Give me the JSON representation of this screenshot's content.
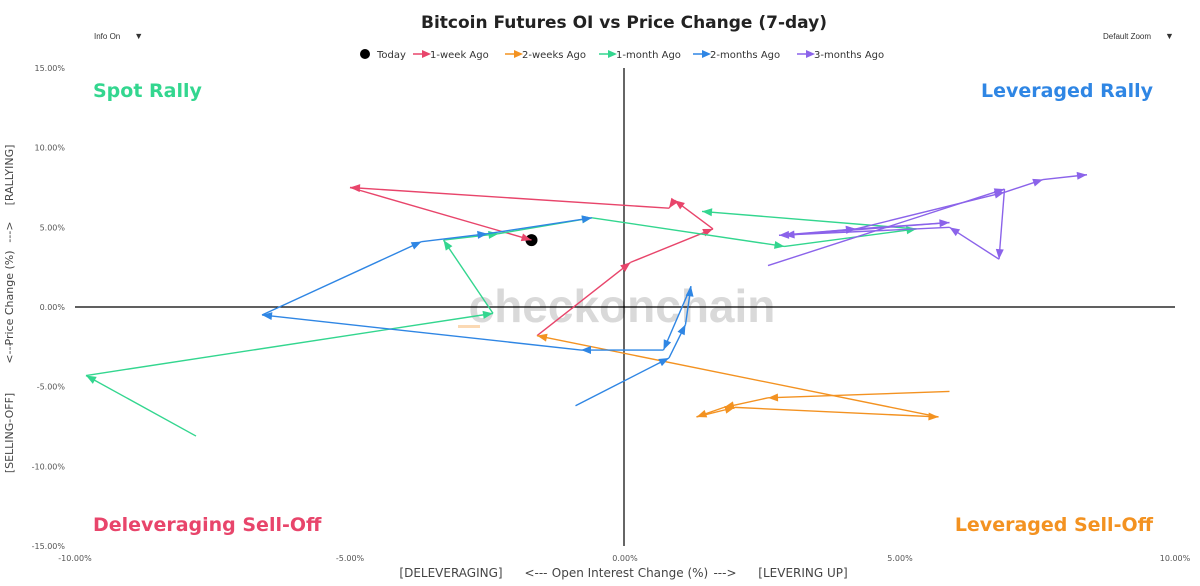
{
  "controls": {
    "info_label": "Info On",
    "zoom_label": "Default Zoom",
    "caret": "▼"
  },
  "colors": {
    "today": "#000000",
    "week1": "#e8456b",
    "week2": "#f39221",
    "month1": "#33d68f",
    "month2": "#2f86e4",
    "month3": "#8b63ea",
    "axis": "#000000",
    "watermark": "#d9d9d9"
  },
  "chart_data": {
    "type": "scatter",
    "title": "Bitcoin Futures OI vs Price Change (7-day)",
    "watermark": "checkonchain",
    "xlabel": "Open Interest Change (%)",
    "xlabel_left": "[DELEVERAGING]",
    "xlabel_right": "[LEVERING UP]",
    "ylabel": "Price Change (%)",
    "ylabel_bottom": "[SELLING-OFF]",
    "ylabel_top": "[RALLYING]",
    "arrow_left": "<---",
    "arrow_right": "--->",
    "xlim": [
      -10,
      10
    ],
    "ylim": [
      -15,
      15
    ],
    "xticks": [
      -10,
      -5,
      0,
      5,
      10
    ],
    "xtick_labels": [
      "-10.00%",
      "-5.00%",
      "0.00%",
      "5.00%",
      "10.00%"
    ],
    "yticks": [
      15,
      10,
      5,
      0,
      -5,
      -10,
      -15
    ],
    "ytick_labels": [
      "15.00%",
      "10.00%",
      "5.00%",
      "0.00%",
      "-5.00%",
      "-10.00%",
      "-15.00%"
    ],
    "grid": false,
    "legend_position": "top",
    "quadrants": {
      "top_left": "Spot Rally",
      "top_right": "Leveraged Rally",
      "bottom_left": "Deleveraging Sell-Off",
      "bottom_right": "Leveraged Sell-Off"
    },
    "series": [
      {
        "name": "Today",
        "key": "today",
        "marker": "dot",
        "points": [
          [
            -1.7,
            4.2
          ]
        ]
      },
      {
        "name": "1-week Ago",
        "key": "week1",
        "points": [
          [
            -1.6,
            -1.8
          ],
          [
            0.1,
            2.8
          ],
          [
            1.6,
            4.9
          ],
          [
            0.9,
            6.7
          ],
          [
            0.8,
            6.2
          ],
          [
            -5.0,
            7.5
          ],
          [
            -1.7,
            4.2
          ]
        ]
      },
      {
        "name": "2-weeks Ago",
        "key": "week2",
        "points": [
          [
            5.9,
            -5.3
          ],
          [
            2.6,
            -5.7
          ],
          [
            1.8,
            -6.3
          ],
          [
            1.3,
            -6.9
          ],
          [
            2.0,
            -6.3
          ],
          [
            5.7,
            -6.9
          ],
          [
            -1.6,
            -1.8
          ]
        ]
      },
      {
        "name": "1-month Ago",
        "key": "month1",
        "points": [
          [
            -7.8,
            -8.1
          ],
          [
            -9.8,
            -4.3
          ],
          [
            -2.4,
            -0.4
          ],
          [
            -3.3,
            4.2
          ],
          [
            -2.3,
            4.6
          ],
          [
            -0.6,
            5.6
          ],
          [
            2.9,
            3.8
          ],
          [
            5.3,
            4.9
          ],
          [
            1.4,
            6.0
          ]
        ]
      },
      {
        "name": "2-months Ago",
        "key": "month2",
        "points": [
          [
            -0.9,
            -6.2
          ],
          [
            0.8,
            -3.2
          ],
          [
            1.1,
            -1.1
          ],
          [
            1.2,
            1.3
          ],
          [
            0.7,
            -2.7
          ],
          [
            -0.8,
            -2.7
          ],
          [
            -6.6,
            -0.5
          ],
          [
            -3.7,
            4.1
          ],
          [
            -2.5,
            4.6
          ],
          [
            -0.6,
            5.6
          ]
        ]
      },
      {
        "name": "3-months Ago",
        "key": "month3",
        "points": [
          [
            2.6,
            2.6
          ],
          [
            6.9,
            7.4
          ],
          [
            6.8,
            3.0
          ],
          [
            5.9,
            5.0
          ],
          [
            2.8,
            4.5
          ],
          [
            4.2,
            4.9
          ],
          [
            5.9,
            5.3
          ],
          [
            2.9,
            4.5
          ],
          [
            4.2,
            4.9
          ],
          [
            6.9,
            7.2
          ],
          [
            7.6,
            8.0
          ],
          [
            8.4,
            8.3
          ]
        ]
      }
    ]
  }
}
